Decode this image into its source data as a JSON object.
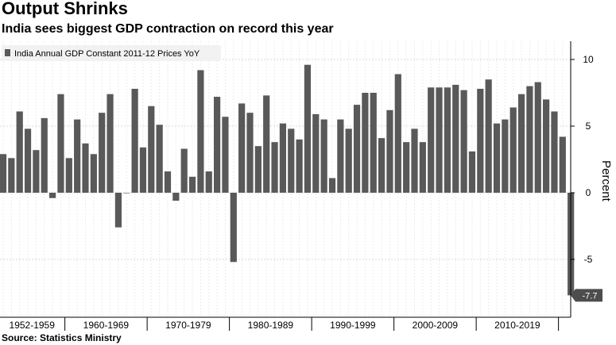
{
  "title": "Output Shrinks",
  "subtitle": "India sees biggest GDP contraction on record this year",
  "source": "Source: Statistics Ministry",
  "chart_data": {
    "type": "bar",
    "series": [
      {
        "name": "India Annual GDP Constant 2011-12 Prices YoY",
        "x": [
          1952,
          1953,
          1954,
          1955,
          1956,
          1957,
          1958,
          1959,
          1960,
          1961,
          1962,
          1963,
          1964,
          1965,
          1966,
          1967,
          1968,
          1969,
          1970,
          1971,
          1972,
          1973,
          1974,
          1975,
          1976,
          1977,
          1978,
          1979,
          1980,
          1981,
          1982,
          1983,
          1984,
          1985,
          1986,
          1987,
          1988,
          1989,
          1990,
          1991,
          1992,
          1993,
          1994,
          1995,
          1996,
          1997,
          1998,
          1999,
          2000,
          2001,
          2002,
          2003,
          2004,
          2005,
          2006,
          2007,
          2008,
          2009,
          2010,
          2011,
          2012,
          2013,
          2014,
          2015,
          2016,
          2017,
          2018,
          2019,
          2020,
          2021
        ],
        "values": [
          2.9,
          2.6,
          6.1,
          4.8,
          3.2,
          5.6,
          -0.4,
          7.4,
          2.6,
          5.5,
          3.7,
          2.9,
          6.0,
          7.4,
          -2.6,
          0.0,
          7.8,
          3.4,
          6.5,
          5.1,
          1.6,
          -0.6,
          3.3,
          1.2,
          9.2,
          1.6,
          7.2,
          5.7,
          -5.2,
          6.7,
          6.0,
          3.5,
          7.3,
          3.8,
          5.2,
          4.8,
          4.0,
          9.6,
          5.9,
          5.5,
          1.1,
          5.5,
          4.8,
          6.6,
          7.5,
          7.5,
          4.1,
          6.2,
          8.9,
          3.8,
          4.8,
          3.8,
          7.9,
          7.9,
          7.9,
          8.1,
          7.7,
          3.1,
          7.8,
          8.5,
          5.2,
          5.5,
          6.4,
          7.4,
          8.0,
          8.3,
          7.0,
          6.1,
          4.2,
          -7.7
        ],
        "color": "#595959"
      }
    ],
    "categories": [
      "1952-1959",
      "1960-1969",
      "1970-1979",
      "1980-1989",
      "1990-1999",
      "2000-2009",
      "2010-2019"
    ],
    "yticks": [
      -5,
      0,
      5,
      10
    ],
    "ylim": [
      -9.3,
      10.7
    ],
    "ylabel": "Percent",
    "last_value_label": "-7.7",
    "legend_position": "top-left",
    "grid": true,
    "colors": {
      "bar": "#595959",
      "grid": "#d9d9d9",
      "axis": "#000000"
    }
  }
}
